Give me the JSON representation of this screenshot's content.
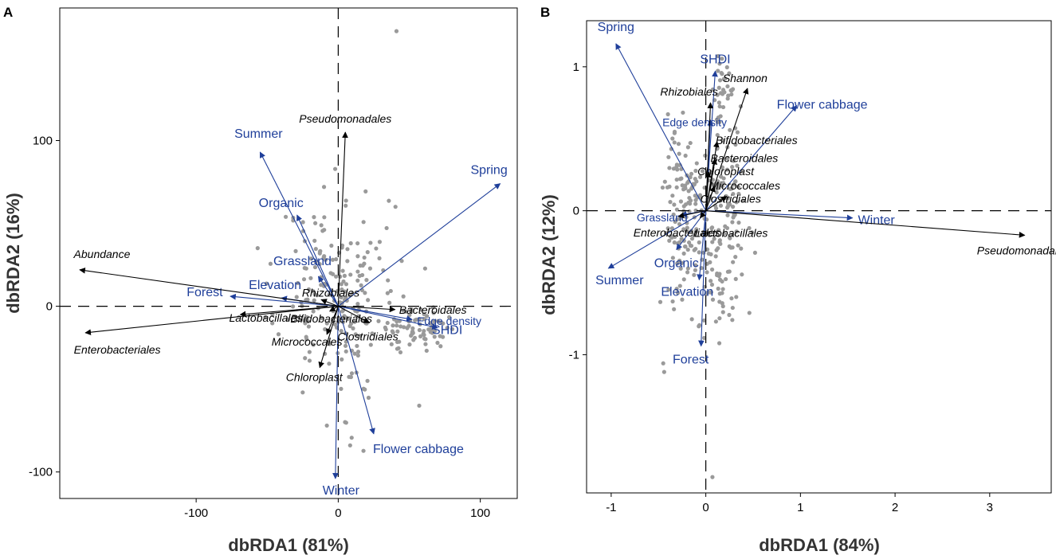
{
  "chart_data": [
    {
      "panel": "A",
      "type": "scatter",
      "subtype": "dbRDA biplot",
      "xlabel": "dbRDA1 (81%)",
      "ylabel": "dbRDA2 (16%)",
      "xlim": [
        -196,
        126
      ],
      "ylim": [
        -116,
        180
      ],
      "xticks": [
        -100,
        0,
        100
      ],
      "yticks": [
        -100,
        0,
        100
      ],
      "xtick_labels": [
        "-100",
        "0",
        "100"
      ],
      "ytick_labels": [
        "-100",
        "0",
        "100"
      ],
      "colors": {
        "environment": "#1f3f9a",
        "taxa": "#000000",
        "sites": "#9a9a9a"
      },
      "vectors": [
        {
          "name": "Summer",
          "group": "environment",
          "x": -55,
          "y": 93
        },
        {
          "name": "Spring",
          "group": "environment",
          "x": 114,
          "y": 74
        },
        {
          "name": "Organic",
          "group": "environment",
          "x": -29,
          "y": 55
        },
        {
          "name": "Grassland",
          "group": "environment",
          "x": -14,
          "y": 18
        },
        {
          "name": "Elevation",
          "group": "environment",
          "x": -40,
          "y": 5
        },
        {
          "name": "Forest",
          "group": "environment",
          "x": -76,
          "y": 6
        },
        {
          "name": "Edge density",
          "group": "environment",
          "x": 52,
          "y": -8
        },
        {
          "name": "SHDI",
          "group": "environment",
          "x": 70,
          "y": -13
        },
        {
          "name": "Flower cabbage",
          "group": "environment",
          "x": 25,
          "y": -77
        },
        {
          "name": "Winter",
          "group": "environment",
          "x": -2,
          "y": -104
        },
        {
          "name": "Pseudomonadales",
          "group": "taxa",
          "x": 5,
          "y": 105
        },
        {
          "name": "Abundance",
          "group": "taxa",
          "x": -182,
          "y": 22
        },
        {
          "name": "Enterobacteriales",
          "group": "taxa",
          "x": -178,
          "y": -16
        },
        {
          "name": "Rhizobiales",
          "group": "taxa",
          "x": -12,
          "y": 4
        },
        {
          "name": "Lactobacillales",
          "group": "taxa",
          "x": -69,
          "y": -5
        },
        {
          "name": "Bacteroidales",
          "group": "taxa",
          "x": 40,
          "y": -2
        },
        {
          "name": "Bifidobacteriales",
          "group": "taxa",
          "x": -6,
          "y": -3
        },
        {
          "name": "Clostridiales",
          "group": "taxa",
          "x": 22,
          "y": -10
        },
        {
          "name": "Micrococcales",
          "group": "taxa",
          "x": -8,
          "y": -17
        },
        {
          "name": "Chloroplast",
          "group": "taxa",
          "x": -13,
          "y": -37
        }
      ]
    },
    {
      "panel": "B",
      "type": "scatter",
      "subtype": "dbRDA biplot",
      "xlabel": "dbRDA1 (84%)",
      "ylabel": "dbRDA2 (12%)",
      "xlim": [
        -1.26,
        3.65
      ],
      "ylim": [
        -1.96,
        1.32
      ],
      "xticks": [
        -1,
        0,
        1,
        2,
        3
      ],
      "yticks": [
        -1,
        0,
        1
      ],
      "xtick_labels": [
        "-1",
        "0",
        "1",
        "2",
        "3"
      ],
      "ytick_labels": [
        "-1",
        "0",
        "1"
      ],
      "colors": {
        "environment": "#1f3f9a",
        "taxa": "#000000",
        "sites": "#9a9a9a"
      },
      "vectors": [
        {
          "name": "Spring",
          "group": "environment",
          "x": -0.95,
          "y": 1.16
        },
        {
          "name": "SHDI",
          "group": "environment",
          "x": 0.1,
          "y": 0.97
        },
        {
          "name": "Flower cabbage",
          "group": "environment",
          "x": 0.96,
          "y": 0.73
        },
        {
          "name": "Edge density",
          "group": "environment",
          "x": 0.05,
          "y": 0.63
        },
        {
          "name": "Grassland",
          "group": "environment",
          "x": -0.26,
          "y": -0.03
        },
        {
          "name": "Winter",
          "group": "environment",
          "x": 1.55,
          "y": -0.05
        },
        {
          "name": "Organic",
          "group": "environment",
          "x": -0.31,
          "y": -0.27
        },
        {
          "name": "Summer",
          "group": "environment",
          "x": -1.03,
          "y": -0.4
        },
        {
          "name": "Elevation",
          "group": "environment",
          "x": -0.07,
          "y": -0.48
        },
        {
          "name": "Forest",
          "group": "environment",
          "x": -0.05,
          "y": -0.94
        },
        {
          "name": "Shannon",
          "group": "taxa",
          "x": 0.44,
          "y": 0.85
        },
        {
          "name": "Rhizobiales",
          "group": "taxa",
          "x": 0.05,
          "y": 0.75
        },
        {
          "name": "Bifidobacteriales",
          "group": "taxa",
          "x": 0.12,
          "y": 0.48
        },
        {
          "name": "Bacteroidales",
          "group": "taxa",
          "x": 0.1,
          "y": 0.36
        },
        {
          "name": "Chloroplast",
          "group": "taxa",
          "x": 0.03,
          "y": 0.27
        },
        {
          "name": "Micrococcales",
          "group": "taxa",
          "x": 0.09,
          "y": 0.17
        },
        {
          "name": "Clostridiales",
          "group": "taxa",
          "x": 0.22,
          "y": 0.1
        },
        {
          "name": "Enterobacteriales",
          "group": "taxa",
          "x": -0.29,
          "y": -0.04
        },
        {
          "name": "Lactobacillales",
          "group": "taxa",
          "x": -0.06,
          "y": -0.05
        },
        {
          "name": "Pseudomonadales",
          "group": "taxa",
          "x": 3.37,
          "y": -0.17
        }
      ]
    }
  ]
}
